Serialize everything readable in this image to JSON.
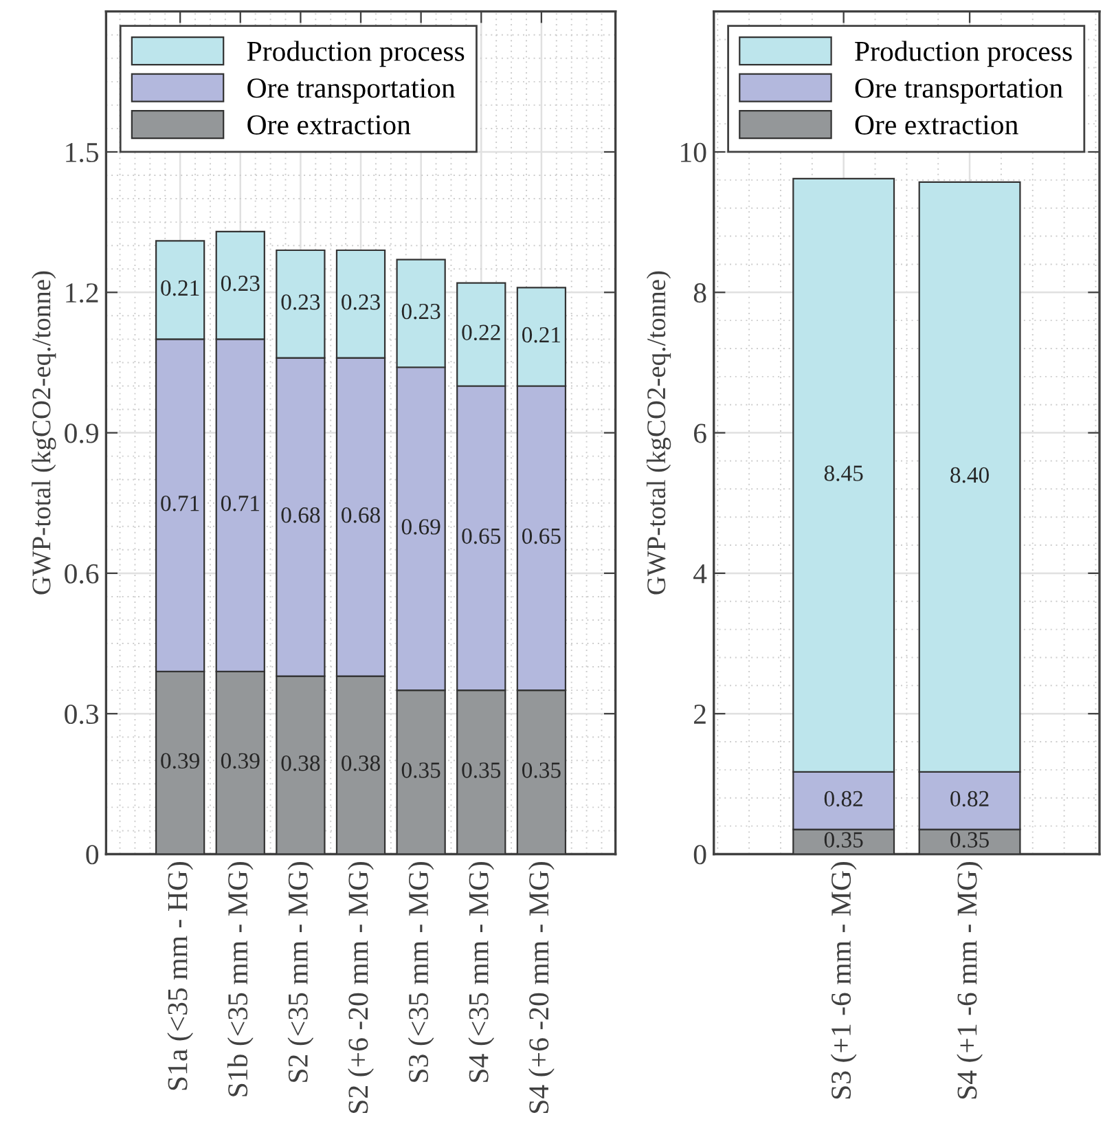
{
  "chart_data": [
    {
      "type": "bar",
      "stacked": true,
      "ylabel": "GWP-total (kgCO2-eq./tonne)",
      "categories": [
        "S1a (<35 mm - HG)",
        "S1b (<35 mm - MG)",
        "S2 (<35 mm - MG)",
        "S2 (+6 -20 mm - MG)",
        "S3 (<35 mm - MG)",
        "S4 (<35 mm - MG)",
        "S4 (+6 -20 mm - MG)"
      ],
      "series": [
        {
          "name": "Ore extraction",
          "color": "#949799",
          "values": [
            0.39,
            0.39,
            0.38,
            0.38,
            0.35,
            0.35,
            0.35
          ],
          "value_labels": [
            "0.39",
            "0.39",
            "0.38",
            "0.38",
            "0.35",
            "0.35",
            "0.35"
          ]
        },
        {
          "name": "Ore transportation",
          "color": "#b3b8dd",
          "values": [
            0.71,
            0.71,
            0.68,
            0.68,
            0.69,
            0.65,
            0.65
          ],
          "value_labels": [
            "0.71",
            "0.71",
            "0.68",
            "0.68",
            "0.69",
            "0.65",
            "0.65"
          ]
        },
        {
          "name": "Production process",
          "color": "#bde5ec",
          "values": [
            0.21,
            0.23,
            0.23,
            0.23,
            0.23,
            0.22,
            0.21
          ],
          "value_labels": [
            "0.21",
            "0.23",
            "0.23",
            "0.23",
            "0.23",
            "0.22",
            "0.21"
          ]
        }
      ],
      "ylim": [
        0,
        1.8
      ],
      "yticks": [
        0,
        0.3,
        0.6,
        0.9,
        1.2,
        1.5
      ],
      "grid": true,
      "legend": "top left"
    },
    {
      "type": "bar",
      "stacked": true,
      "ylabel": "GWP-total (kgCO2-eq./tonne)",
      "categories": [
        "S3 (+1 -6 mm - MG)",
        "S4 (+1 -6 mm - MG)"
      ],
      "series": [
        {
          "name": "Ore extraction",
          "color": "#949799",
          "values": [
            0.35,
            0.35
          ],
          "value_labels": [
            "0.35",
            "0.35"
          ]
        },
        {
          "name": "Ore transportation",
          "color": "#b3b8dd",
          "values": [
            0.82,
            0.82
          ],
          "value_labels": [
            "0.82",
            "0.82"
          ]
        },
        {
          "name": "Production process",
          "color": "#bde5ec",
          "values": [
            8.45,
            8.4
          ],
          "value_labels": [
            "8.45",
            "8.40"
          ]
        }
      ],
      "ylim": [
        0,
        12
      ],
      "yticks": [
        0,
        2,
        4,
        6,
        8,
        10
      ],
      "grid": true,
      "legend": "top left"
    }
  ]
}
